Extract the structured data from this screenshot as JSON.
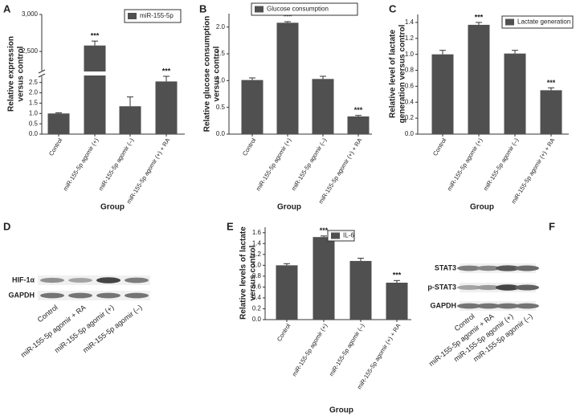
{
  "chart_data": [
    {
      "type": "bar",
      "panel": "A",
      "ylabel": [
        "Relative expression",
        "versus control"
      ],
      "xlabel": "Group",
      "categories": [
        "Control",
        "miR-155-5p agomir (+)",
        "miR-155-5p agomir (–)",
        "miR-155-5p agomir (+) + RA"
      ],
      "series": [
        {
          "name": "miR-155-5p",
          "color": "#505050",
          "values": [
            1.0,
            2580,
            1.35,
            2.55
          ],
          "errors": [
            0.03,
            60,
            0.45,
            0.25
          ],
          "annotations": [
            null,
            "***",
            null,
            "***"
          ]
        }
      ],
      "ylim": [
        0,
        3000
      ],
      "ybreak": [
        2.8,
        2240
      ],
      "yticks": [
        {
          "value": 0,
          "label": "0.0"
        },
        0.5,
        {
          "value": 1,
          "label": "1.0"
        },
        1.5,
        {
          "value": 2,
          "label": "2.0"
        },
        2.5,
        {
          "value": 2500,
          "label": "2,500"
        },
        {
          "value": 3000,
          "label": "3,000"
        }
      ]
    },
    {
      "type": "bar",
      "panel": "B",
      "ylabel": [
        "Relative glucose consumption",
        "versus control"
      ],
      "xlabel": "Group",
      "categories": [
        "Control",
        "miR-155-5p agomir (+)",
        "miR-155-5p agomir (–)",
        "miR-155-5p agomir (+) + RA"
      ],
      "series": [
        {
          "name": "Glucose consumption",
          "color": "#505050",
          "values": [
            1.01,
            2.08,
            1.03,
            0.33
          ],
          "errors": [
            0.04,
            0.02,
            0.05,
            0.02
          ],
          "annotations": [
            null,
            "***",
            null,
            "***"
          ]
        }
      ],
      "ylim": [
        0,
        2.25
      ],
      "yticks": [
        {
          "value": 0,
          "label": "0.0"
        },
        0.5,
        {
          "value": 1,
          "label": "1.0"
        },
        1.5,
        {
          "value": 2,
          "label": "2.0"
        }
      ]
    },
    {
      "type": "bar",
      "panel": "C",
      "ylabel": [
        "Relative level of lactate",
        "generation versus control"
      ],
      "xlabel": "Group",
      "categories": [
        "Control",
        "miR-155-5p agomir (+)",
        "miR-155-5p agomir (–)",
        "miR-155-5p agomir (+) + RA"
      ],
      "series": [
        {
          "name": "Lactate generation",
          "color": "#505050",
          "values": [
            1.0,
            1.37,
            1.01,
            0.55
          ],
          "errors": [
            0.05,
            0.03,
            0.04,
            0.03
          ],
          "annotations": [
            null,
            "***",
            null,
            "***"
          ]
        }
      ],
      "ylim": [
        0,
        1.5
      ],
      "yticks": [
        {
          "value": 0,
          "label": "0.0"
        },
        0.2,
        0.4,
        0.6,
        0.8,
        {
          "value": 1,
          "label": "1.0"
        },
        1.2,
        1.4
      ]
    },
    {
      "type": "blot",
      "panel": "D",
      "rows": [
        "HIF-1α",
        "GAPDH"
      ],
      "lanes": [
        "Control",
        "miR-155-5p agomir + RA",
        "miR-155-5p agomir (+)",
        "miR-155-5p agomir (–)"
      ]
    },
    {
      "type": "bar",
      "panel": "E",
      "ylabel": [
        "Relative levels of lactate",
        "versus control"
      ],
      "xlabel": "Group",
      "categories": [
        "Control",
        "miR-155-5p agomir (+)",
        "miR-155-5p agomir (–)",
        "miR-155-5p agomir (+) + RA"
      ],
      "series": [
        {
          "name": "IL-6",
          "color": "#505050",
          "values": [
            1.0,
            1.52,
            1.08,
            0.68
          ],
          "errors": [
            0.03,
            0.02,
            0.05,
            0.04
          ],
          "annotations": [
            null,
            "***",
            null,
            "***"
          ]
        }
      ],
      "ylim": [
        0,
        1.7
      ],
      "yticks": [
        {
          "value": 0,
          "label": "0.0"
        },
        0.2,
        0.4,
        0.6,
        0.8,
        {
          "value": 1,
          "label": "1.0"
        },
        1.2,
        1.4,
        1.6
      ]
    },
    {
      "type": "blot",
      "panel": "F",
      "rows": [
        "STAT3",
        "p-STAT3",
        "GAPDH"
      ],
      "lanes": [
        "Control",
        "miR-155-5p agomir + RA",
        "miR-155-5p agomir (+)",
        "miR-155-5p agomir (–)"
      ]
    }
  ]
}
